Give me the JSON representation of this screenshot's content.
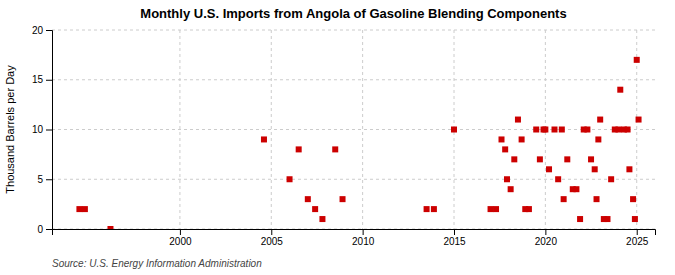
{
  "chart_data": {
    "type": "scatter",
    "title": "Monthly U.S. Imports from Angola of Gasoline Blending Components",
    "y_label": "Thousand Barrels per Day",
    "source": "Source: U.S. Energy Information Administration",
    "color": "#cc0000",
    "marker": "square",
    "grid": true,
    "xlim": [
      1993,
      2026
    ],
    "ylim": [
      0,
      20
    ],
    "xticks": [
      2000,
      2005,
      2010,
      2015,
      2020,
      2025
    ],
    "yticks": [
      0,
      5,
      10,
      15,
      20
    ],
    "x": [
      1994.5,
      1994.8,
      1996.2,
      2004.6,
      2006.0,
      2006.5,
      2007.0,
      2007.4,
      2007.8,
      2008.5,
      2008.9,
      2013.5,
      2013.9,
      2015.0,
      2017.0,
      2017.3,
      2017.6,
      2017.8,
      2017.9,
      2018.1,
      2018.3,
      2018.5,
      2018.7,
      2018.9,
      2019.1,
      2019.5,
      2019.7,
      2019.9,
      2020.0,
      2020.2,
      2020.5,
      2020.7,
      2020.9,
      2021.0,
      2021.2,
      2021.5,
      2021.7,
      2021.9,
      2022.1,
      2022.3,
      2022.5,
      2022.7,
      2022.8,
      2022.9,
      2023.0,
      2023.2,
      2023.4,
      2023.6,
      2023.8,
      2024.0,
      2024.1,
      2024.3,
      2024.5,
      2024.6,
      2024.8,
      2024.9,
      2025.0,
      2025.1
    ],
    "values": [
      2,
      2,
      0,
      9,
      5,
      8,
      3,
      2,
      1,
      8,
      3,
      2,
      2,
      10,
      2,
      2,
      9,
      8,
      5,
      4,
      7,
      11,
      9,
      2,
      2,
      10,
      7,
      10,
      10,
      6,
      10,
      5,
      10,
      3,
      7,
      4,
      4,
      1,
      10,
      10,
      7,
      6,
      3,
      9,
      11,
      1,
      1,
      5,
      10,
      10,
      14,
      10,
      10,
      6,
      3,
      1,
      17,
      11
    ]
  }
}
